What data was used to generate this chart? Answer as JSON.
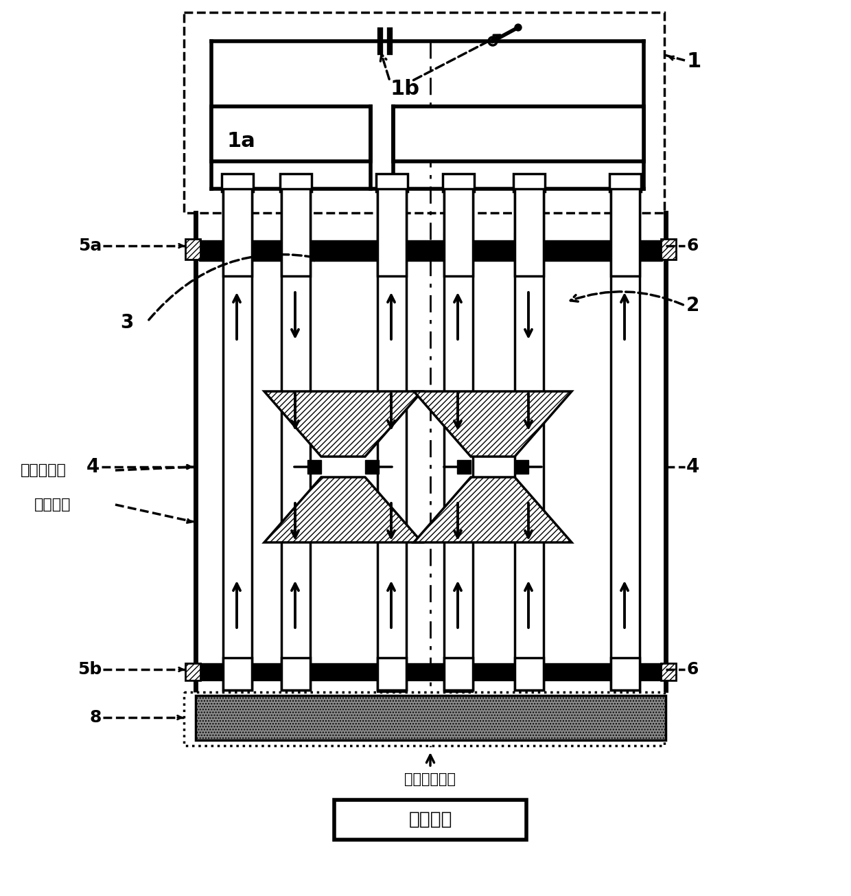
{
  "labels": {
    "1": "1",
    "1a": "1a",
    "1b": "1b",
    "2": "2",
    "3": "3",
    "4": "4",
    "5a": "5a",
    "5b": "5b",
    "6": "6",
    "8": "8",
    "emf": "电磁力方向",
    "current": "电流方向",
    "space": "空间位置调整",
    "drive": "传动系统"
  },
  "colors": {
    "black": "#000000",
    "white": "#ffffff",
    "bg": "#ffffff"
  },
  "fig_w": 12.4,
  "fig_h": 13.05,
  "dpi": 100
}
